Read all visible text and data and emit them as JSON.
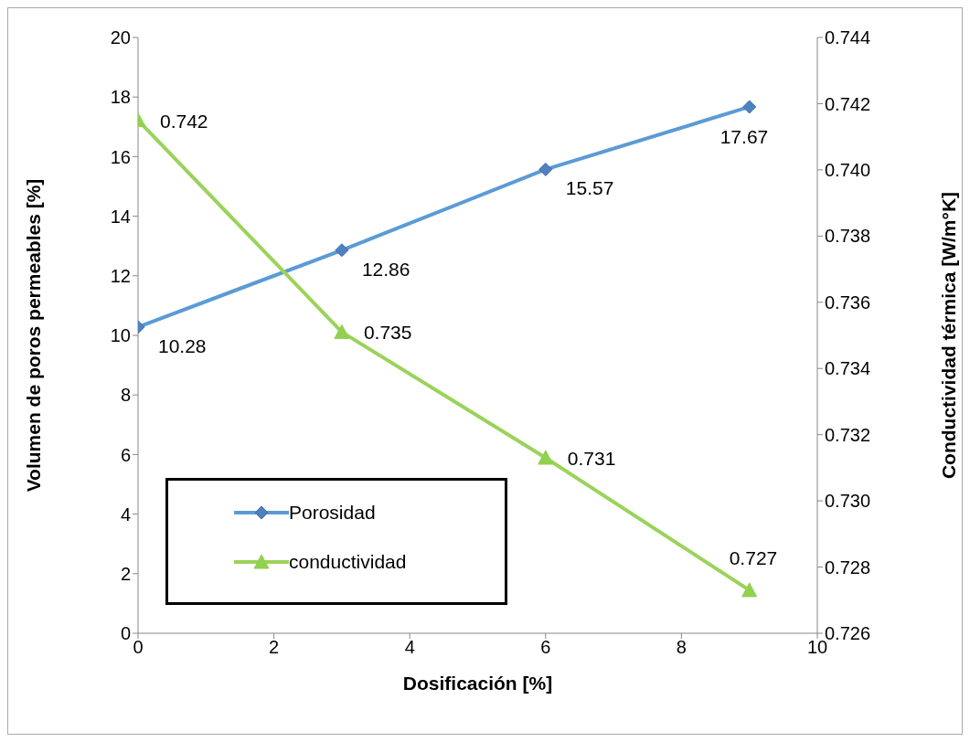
{
  "chart_data": {
    "type": "line",
    "xlabel": "Dosificación [%]",
    "ylabel": "Volumen de poros permeables [%]",
    "y2label": "Conductividad térmica [W/m°K]",
    "x": [
      0,
      3,
      6,
      9
    ],
    "series": [
      {
        "name": "Porosidad",
        "color": "#5b9bd5",
        "marker": "diamond",
        "values": [
          10.28,
          12.86,
          15.57,
          17.67
        ],
        "value_labels": [
          "10.28",
          "12.86",
          "15.57",
          "17.67"
        ]
      },
      {
        "name": "conductividad",
        "color": "#9bd35a",
        "marker": "triangle",
        "axis": "y2",
        "values": [
          0.7415,
          0.7351,
          0.7313,
          0.7273
        ],
        "value_labels": [
          "0.742",
          "0.735",
          "0.731",
          "0.727"
        ]
      }
    ],
    "xlim": [
      0,
      10
    ],
    "xticks": [
      0,
      2,
      4,
      6,
      8,
      10
    ],
    "ylim": [
      0,
      20
    ],
    "yticks": [
      0,
      2,
      4,
      6,
      8,
      10,
      12,
      14,
      16,
      18,
      20
    ],
    "y2lim": [
      0.726,
      0.744
    ],
    "y2ticks": [
      0.726,
      0.728,
      {
        "value": 0.73,
        "label": "0.730"
      },
      0.732,
      0.734,
      0.736,
      0.738,
      {
        "value": 0.74,
        "label": "0.740"
      },
      0.742,
      0.744
    ],
    "grid": false,
    "legend": "bottom left",
    "line_style": "solid"
  }
}
